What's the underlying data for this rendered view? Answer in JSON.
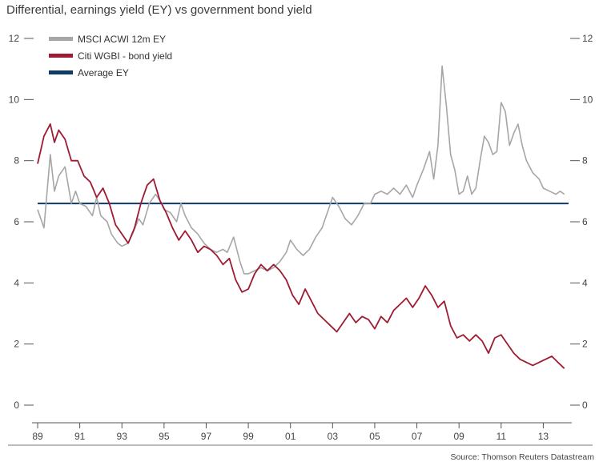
{
  "title": "Differential, earnings yield (EY) vs government bond yield",
  "source": "Source: Thomson Reuters Datastream",
  "colors": {
    "ey": "#a6a6a6",
    "bond": "#9e1b32",
    "average": "#0d3b66",
    "axis": "#555555"
  },
  "chart_data": {
    "type": "line",
    "title": "Differential, earnings yield (EY) vs government bond yield",
    "xlabel": "",
    "ylabel": "",
    "xlim": [
      1989,
      2014.2
    ],
    "ylim": [
      0,
      12
    ],
    "yticks": [
      0,
      2,
      4,
      6,
      8,
      10,
      12
    ],
    "xticks": [
      1989,
      1991,
      1993,
      1995,
      1997,
      1999,
      2001,
      2003,
      2005,
      2007,
      2009,
      2011,
      2013
    ],
    "xtick_labels": [
      "89",
      "91",
      "93",
      "95",
      "97",
      "99",
      "01",
      "03",
      "05",
      "07",
      "09",
      "11",
      "13"
    ],
    "legend_position": "top-left",
    "grid": false,
    "series": [
      {
        "name": "MSCI ACWI 12m EY",
        "points": [
          [
            1989.0,
            6.4
          ],
          [
            1989.3,
            5.8
          ],
          [
            1989.6,
            8.2
          ],
          [
            1989.8,
            7.0
          ],
          [
            1990.0,
            7.5
          ],
          [
            1990.3,
            7.8
          ],
          [
            1990.6,
            6.6
          ],
          [
            1990.8,
            7.0
          ],
          [
            1991.0,
            6.6
          ],
          [
            1991.3,
            6.5
          ],
          [
            1991.6,
            6.2
          ],
          [
            1991.8,
            6.8
          ],
          [
            1992.0,
            6.2
          ],
          [
            1992.3,
            6.0
          ],
          [
            1992.5,
            5.6
          ],
          [
            1992.8,
            5.3
          ],
          [
            1993.0,
            5.2
          ],
          [
            1993.3,
            5.3
          ],
          [
            1993.5,
            5.6
          ],
          [
            1993.8,
            6.1
          ],
          [
            1994.0,
            5.9
          ],
          [
            1994.3,
            6.6
          ],
          [
            1994.6,
            6.9
          ],
          [
            1994.9,
            6.6
          ],
          [
            1995.0,
            6.4
          ],
          [
            1995.3,
            6.3
          ],
          [
            1995.6,
            6.0
          ],
          [
            1995.8,
            6.6
          ],
          [
            1996.0,
            6.2
          ],
          [
            1996.3,
            5.8
          ],
          [
            1996.6,
            5.6
          ],
          [
            1996.9,
            5.3
          ],
          [
            1997.2,
            5.1
          ],
          [
            1997.5,
            5.0
          ],
          [
            1997.8,
            5.1
          ],
          [
            1998.0,
            5.0
          ],
          [
            1998.3,
            5.5
          ],
          [
            1998.6,
            4.7
          ],
          [
            1998.8,
            4.3
          ],
          [
            1999.0,
            4.3
          ],
          [
            1999.3,
            4.4
          ],
          [
            1999.6,
            4.5
          ],
          [
            1999.9,
            4.4
          ],
          [
            2000.2,
            4.5
          ],
          [
            2000.5,
            4.7
          ],
          [
            2000.8,
            5.0
          ],
          [
            2001.0,
            5.4
          ],
          [
            2001.3,
            5.1
          ],
          [
            2001.6,
            4.9
          ],
          [
            2001.9,
            5.1
          ],
          [
            2002.2,
            5.5
          ],
          [
            2002.5,
            5.8
          ],
          [
            2002.8,
            6.4
          ],
          [
            2003.0,
            6.8
          ],
          [
            2003.3,
            6.5
          ],
          [
            2003.6,
            6.1
          ],
          [
            2003.9,
            5.9
          ],
          [
            2004.2,
            6.2
          ],
          [
            2004.5,
            6.6
          ],
          [
            2004.8,
            6.6
          ],
          [
            2005.0,
            6.9
          ],
          [
            2005.3,
            7.0
          ],
          [
            2005.6,
            6.9
          ],
          [
            2005.9,
            7.1
          ],
          [
            2006.2,
            6.9
          ],
          [
            2006.5,
            7.2
          ],
          [
            2006.8,
            6.8
          ],
          [
            2007.0,
            7.2
          ],
          [
            2007.3,
            7.7
          ],
          [
            2007.6,
            8.3
          ],
          [
            2007.8,
            7.4
          ],
          [
            2008.0,
            8.5
          ],
          [
            2008.2,
            11.1
          ],
          [
            2008.4,
            9.8
          ],
          [
            2008.6,
            8.2
          ],
          [
            2008.8,
            7.7
          ],
          [
            2009.0,
            6.9
          ],
          [
            2009.2,
            7.0
          ],
          [
            2009.4,
            7.5
          ],
          [
            2009.6,
            6.9
          ],
          [
            2009.8,
            7.1
          ],
          [
            2010.0,
            8.0
          ],
          [
            2010.2,
            8.8
          ],
          [
            2010.4,
            8.6
          ],
          [
            2010.6,
            8.2
          ],
          [
            2010.8,
            8.3
          ],
          [
            2011.0,
            9.9
          ],
          [
            2011.2,
            9.6
          ],
          [
            2011.4,
            8.5
          ],
          [
            2011.6,
            8.9
          ],
          [
            2011.8,
            9.2
          ],
          [
            2012.0,
            8.5
          ],
          [
            2012.2,
            8.0
          ],
          [
            2012.5,
            7.6
          ],
          [
            2012.8,
            7.4
          ],
          [
            2013.0,
            7.1
          ],
          [
            2013.3,
            7.0
          ],
          [
            2013.6,
            6.9
          ],
          [
            2013.8,
            7.0
          ],
          [
            2014.0,
            6.9
          ]
        ]
      },
      {
        "name": "Citi WGBI - bond yield",
        "points": [
          [
            1989.0,
            7.9
          ],
          [
            1989.3,
            8.8
          ],
          [
            1989.6,
            9.2
          ],
          [
            1989.8,
            8.6
          ],
          [
            1990.0,
            9.0
          ],
          [
            1990.3,
            8.7
          ],
          [
            1990.6,
            8.0
          ],
          [
            1990.9,
            8.0
          ],
          [
            1991.2,
            7.5
          ],
          [
            1991.5,
            7.3
          ],
          [
            1991.8,
            6.8
          ],
          [
            1992.1,
            7.1
          ],
          [
            1992.4,
            6.6
          ],
          [
            1992.7,
            5.9
          ],
          [
            1993.0,
            5.6
          ],
          [
            1993.3,
            5.3
          ],
          [
            1993.6,
            5.8
          ],
          [
            1993.9,
            6.6
          ],
          [
            1994.2,
            7.2
          ],
          [
            1994.5,
            7.4
          ],
          [
            1994.8,
            6.7
          ],
          [
            1995.1,
            6.3
          ],
          [
            1995.4,
            5.8
          ],
          [
            1995.7,
            5.4
          ],
          [
            1996.0,
            5.7
          ],
          [
            1996.3,
            5.4
          ],
          [
            1996.6,
            5.0
          ],
          [
            1996.9,
            5.2
          ],
          [
            1997.2,
            5.1
          ],
          [
            1997.5,
            4.9
          ],
          [
            1997.8,
            4.6
          ],
          [
            1998.1,
            4.8
          ],
          [
            1998.4,
            4.1
          ],
          [
            1998.7,
            3.7
          ],
          [
            1999.0,
            3.8
          ],
          [
            1999.3,
            4.3
          ],
          [
            1999.6,
            4.6
          ],
          [
            1999.9,
            4.4
          ],
          [
            2000.2,
            4.6
          ],
          [
            2000.5,
            4.4
          ],
          [
            2000.8,
            4.1
          ],
          [
            2001.1,
            3.6
          ],
          [
            2001.4,
            3.3
          ],
          [
            2001.7,
            3.8
          ],
          [
            2002.0,
            3.4
          ],
          [
            2002.3,
            3.0
          ],
          [
            2002.6,
            2.8
          ],
          [
            2002.9,
            2.6
          ],
          [
            2003.2,
            2.4
          ],
          [
            2003.5,
            2.7
          ],
          [
            2003.8,
            3.0
          ],
          [
            2004.1,
            2.7
          ],
          [
            2004.4,
            2.9
          ],
          [
            2004.7,
            2.8
          ],
          [
            2005.0,
            2.5
          ],
          [
            2005.3,
            2.9
          ],
          [
            2005.6,
            2.7
          ],
          [
            2005.9,
            3.1
          ],
          [
            2006.2,
            3.3
          ],
          [
            2006.5,
            3.5
          ],
          [
            2006.8,
            3.2
          ],
          [
            2007.1,
            3.5
          ],
          [
            2007.4,
            3.9
          ],
          [
            2007.7,
            3.6
          ],
          [
            2008.0,
            3.2
          ],
          [
            2008.3,
            3.4
          ],
          [
            2008.6,
            2.6
          ],
          [
            2008.9,
            2.2
          ],
          [
            2009.2,
            2.3
          ],
          [
            2009.5,
            2.1
          ],
          [
            2009.8,
            2.3
          ],
          [
            2010.1,
            2.1
          ],
          [
            2010.4,
            1.7
          ],
          [
            2010.7,
            2.2
          ],
          [
            2011.0,
            2.3
          ],
          [
            2011.3,
            2.0
          ],
          [
            2011.6,
            1.7
          ],
          [
            2011.9,
            1.5
          ],
          [
            2012.2,
            1.4
          ],
          [
            2012.5,
            1.3
          ],
          [
            2012.8,
            1.4
          ],
          [
            2013.1,
            1.5
          ],
          [
            2013.4,
            1.6
          ],
          [
            2013.7,
            1.4
          ],
          [
            2014.0,
            1.2
          ]
        ]
      }
    ],
    "reference_lines": [
      {
        "name": "Average EY",
        "value": 6.6
      }
    ]
  }
}
